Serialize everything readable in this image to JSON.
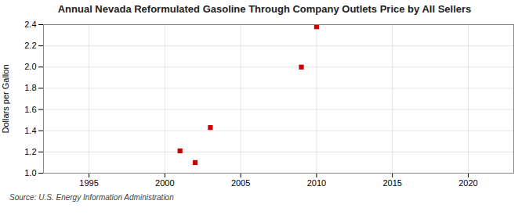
{
  "chart_data": {
    "type": "scatter",
    "title": "Annual Nevada Reformulated Gasoline Through Company Outlets Price by All Sellers",
    "ylabel": "Dollars per Gallon",
    "annotations": [
      "Source: U.S. Energy Information Administration"
    ],
    "x": [
      2001,
      2002,
      2003,
      2009,
      2010
    ],
    "values": [
      1.21,
      1.1,
      1.43,
      2.0,
      2.38
    ],
    "color": "#cc0000",
    "marker": "square",
    "xlim": [
      1992,
      2023
    ],
    "xticks": [
      1995,
      2000,
      2005,
      2010,
      2015,
      2020
    ],
    "ylim": [
      1.0,
      2.4
    ],
    "yticks": [
      {
        "value": 1.0,
        "label": "1.0"
      },
      1.2,
      1.4,
      1.6,
      1.8,
      {
        "value": 2.0,
        "label": "2.0"
      },
      2.2,
      2.4
    ],
    "grid": true
  }
}
